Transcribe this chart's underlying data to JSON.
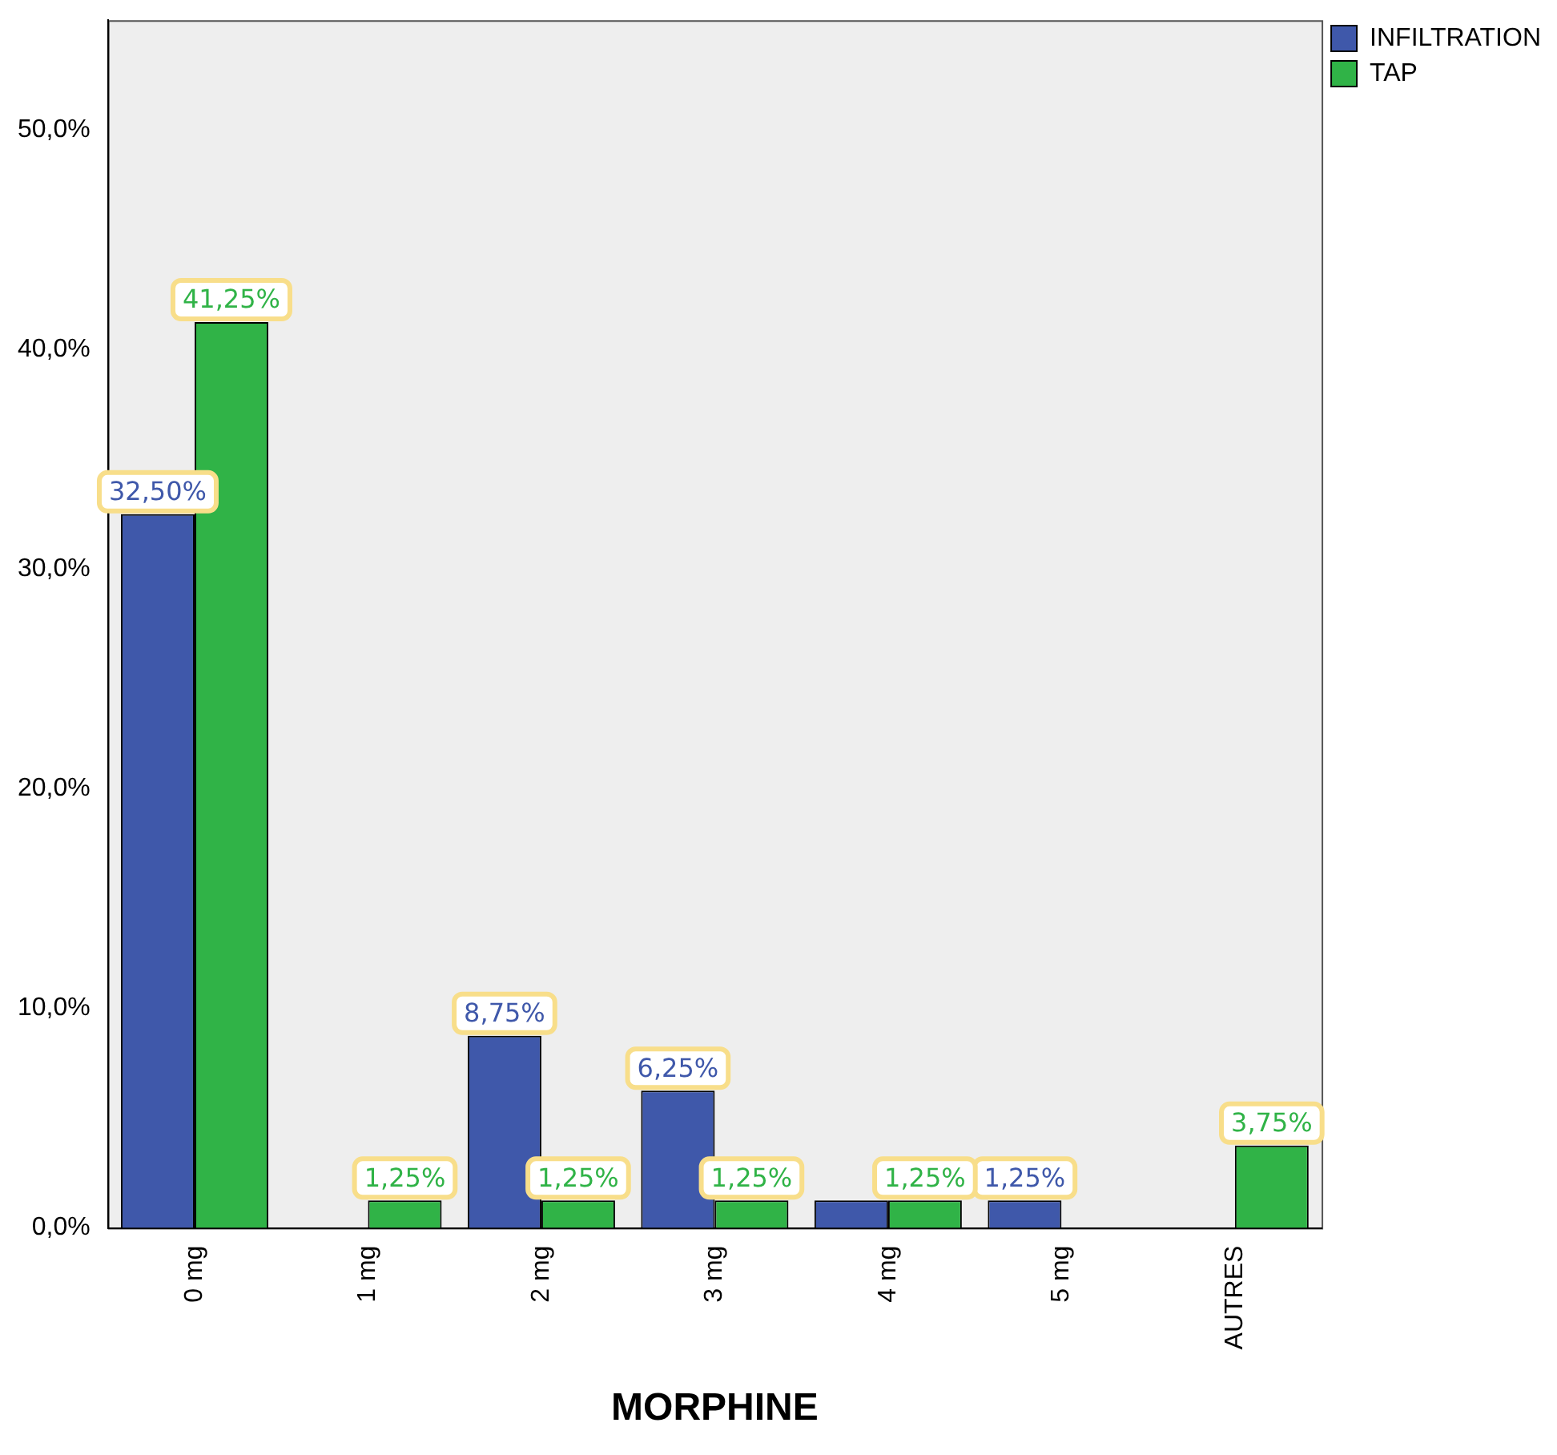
{
  "chart_data": {
    "type": "bar",
    "xlabel": "MORPHINE",
    "categories": [
      "0 mg",
      "1 mg",
      "2 mg",
      "3 mg",
      "4 mg",
      "5 mg",
      "AUTRES"
    ],
    "series": [
      {
        "name": "INFILTRATION",
        "color": "#3f58aa",
        "values": [
          32.5,
          null,
          8.75,
          6.25,
          1.25,
          1.25,
          null
        ],
        "value_labels": [
          "32,50%",
          null,
          "8,75%",
          "6,25%",
          null,
          "1,25%",
          null
        ]
      },
      {
        "name": "TAP",
        "color": "#30b347",
        "values": [
          41.25,
          1.25,
          1.25,
          1.25,
          1.25,
          null,
          3.75
        ],
        "value_labels": [
          "41,25%",
          "1,25%",
          "1,25%",
          "1,25%",
          "1,25%",
          null,
          "3,75%"
        ]
      }
    ],
    "ylim": [
      0,
      55
    ],
    "yticks": [
      {
        "value": 0,
        "label": "0,0%"
      },
      {
        "value": 10,
        "label": "10,0%"
      },
      {
        "value": 20,
        "label": "20,0%"
      },
      {
        "value": 30,
        "label": "30,0%"
      },
      {
        "value": 40,
        "label": "40,0%"
      },
      {
        "value": 50,
        "label": "50,0%"
      }
    ],
    "grid": false,
    "legend": "top right"
  }
}
